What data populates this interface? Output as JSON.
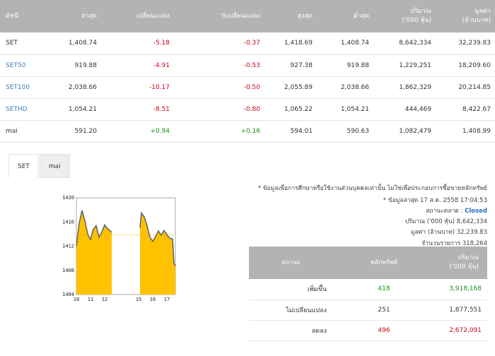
{
  "index_table": {
    "headers": [
      "ดัชนี",
      "ล่าสุด",
      "เปลี่ยนแปลง",
      "%เปลี่ยนแปลง",
      "สูงสุด",
      "ต่ำสุด",
      "ปริมาณ\n('000 หุ้น)",
      "มูลค่า\n(ล้านบาท)"
    ],
    "rows": [
      {
        "name": "SET",
        "last": "1,408.74",
        "change": "-5.18",
        "pct": "-0.37",
        "high": "1,418.69",
        "low": "1,408.74",
        "volume": "8,642,334",
        "value": "32,239.83",
        "link": false,
        "dir": "neg"
      },
      {
        "name": "SET50",
        "last": "919.88",
        "change": "-4.91",
        "pct": "-0.53",
        "high": "927.38",
        "low": "919.88",
        "volume": "1,229,251",
        "value": "18,209.60",
        "link": true,
        "dir": "neg"
      },
      {
        "name": "SET100",
        "last": "2,038.66",
        "change": "-10.17",
        "pct": "-0.50",
        "high": "2,055.89",
        "low": "2,038.66",
        "volume": "1,862,329",
        "value": "20,214.85",
        "link": true,
        "dir": "neg"
      },
      {
        "name": "SETHD",
        "last": "1,054.21",
        "change": "-8.51",
        "pct": "-0.80",
        "high": "1,065.22",
        "low": "1,054.21",
        "volume": "444,469",
        "value": "8,422.67",
        "link": true,
        "dir": "neg"
      },
      {
        "name": "mai",
        "last": "591.20",
        "change": "+0.94",
        "pct": "+0.16",
        "high": "594.01",
        "low": "590.63",
        "volume": "1,082,479",
        "value": "1,408.99",
        "link": false,
        "dir": "pos"
      }
    ]
  },
  "tabs": [
    {
      "label": "SET",
      "active": true
    },
    {
      "label": "mai",
      "active": false
    }
  ],
  "chart_data": {
    "type": "area",
    "x_tick_labels": [
      "10",
      "11",
      "12",
      "15",
      "16",
      "17"
    ],
    "y_tick_labels": [
      "1420",
      "1416",
      "1412",
      "1408",
      "1404"
    ],
    "ylim": [
      1404,
      1420
    ],
    "fill_color": "#ffc200",
    "line_color": "#666666",
    "reference_line_color": "#f0a000",
    "reference_value": 1413.9,
    "sessions": [
      {
        "x": [
          10.0,
          10.2,
          10.4,
          10.6,
          10.8,
          11.0,
          11.2,
          11.4,
          11.6,
          11.8,
          12.0,
          12.2,
          12.4,
          12.5
        ],
        "y": [
          1412.0,
          1415.8,
          1417.9,
          1416.2,
          1414.0,
          1413.1,
          1414.8,
          1415.4,
          1413.5,
          1414.3,
          1415.5,
          1414.9,
          1414.5,
          1414.3
        ]
      },
      {
        "x": [
          14.5,
          14.6,
          14.8,
          15.0,
          15.2,
          15.4,
          15.6,
          15.8,
          16.0,
          16.2,
          16.4,
          16.6,
          16.8,
          16.9,
          17.0
        ],
        "y": [
          1415.0,
          1417.5,
          1416.8,
          1415.4,
          1413.5,
          1412.8,
          1413.6,
          1414.5,
          1413.8,
          1414.6,
          1413.9,
          1413.3,
          1413.2,
          1409.2,
          1408.7
        ]
      }
    ]
  },
  "info": {
    "disclaimer": "* ข้อมูลเพื่อการศึกษาหรือใช้งานส่วนบุคคลเท่านั้น ไม่ใช่เพื่อประกอบการซื้อขายหลักทรัพย์",
    "latest_label": "* ข้อมูลล่าสุด",
    "latest_value": "17 ส.ค. 2558 17:04:53",
    "market_status_label": "สถานะตลาด :",
    "market_status_value": "Closed",
    "volume_label": "ปริมาณ ('000 หุ้น)",
    "volume_value": "8,642,334",
    "value_label": "มูลค่า (ล้านบาท)",
    "value_value": "32,239.83",
    "trades_label": "จำนวนรายการ",
    "trades_value": "318,264"
  },
  "summary": {
    "headers": [
      "สถานะ",
      "หลักทรัพย์",
      "ปริมาณ\n('000 หุ้น)"
    ],
    "rows": [
      {
        "status": "เพิ่มขึ้น",
        "count": "418",
        "volume": "3,918,168",
        "dir": "pos"
      },
      {
        "status": "ไม่เปลี่ยนแปลง",
        "count": "251",
        "volume": "1,877,551",
        "dir": "none"
      },
      {
        "status": "ลดลง",
        "count": "496",
        "volume": "2,672,091",
        "dir": "neg"
      }
    ]
  }
}
